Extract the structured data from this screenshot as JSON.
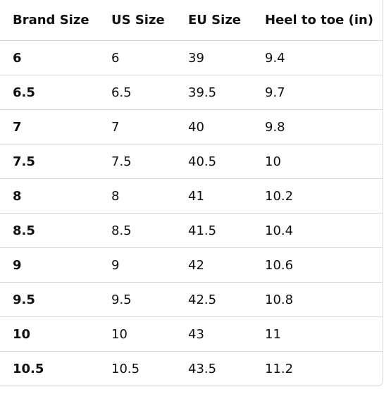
{
  "table": {
    "header": [
      "Brand Size",
      "US Size",
      "EU Size",
      "Heel to toe (in)"
    ],
    "rows": [
      [
        "6",
        "6",
        "39",
        "9.4"
      ],
      [
        "6.5",
        "6.5",
        "39.5",
        "9.7"
      ],
      [
        "7",
        "7",
        "40",
        "9.8"
      ],
      [
        "7.5",
        "7.5",
        "40.5",
        "10"
      ],
      [
        "8",
        "8",
        "41",
        "10.2"
      ],
      [
        "8.5",
        "8.5",
        "41.5",
        "10.4"
      ],
      [
        "9",
        "9",
        "42",
        "10.6"
      ],
      [
        "9.5",
        "9.5",
        "42.5",
        "10.8"
      ],
      [
        "10",
        "10",
        "43",
        "11"
      ],
      [
        "10.5",
        "10.5",
        "43.5",
        "11.2"
      ]
    ]
  }
}
